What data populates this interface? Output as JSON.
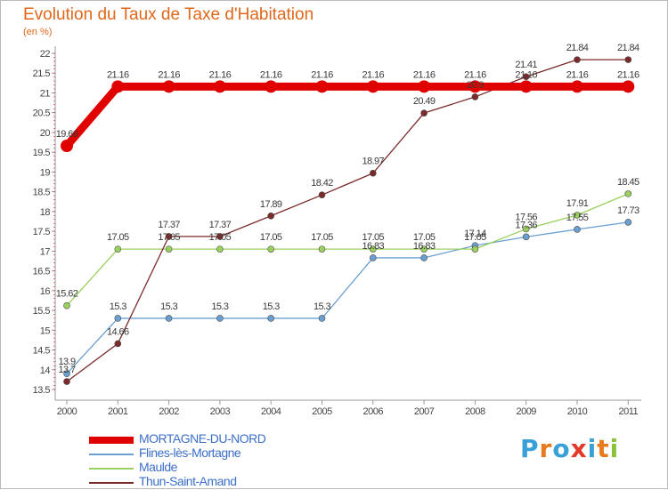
{
  "chart_data": {
    "type": "line",
    "title": "Evolution du Taux de Taxe d'Habitation",
    "unit_label": "(en %)",
    "categories": [
      "2000",
      "2001",
      "2002",
      "2003",
      "2004",
      "2005",
      "2006",
      "2007",
      "2008",
      "2009",
      "2010",
      "2011"
    ],
    "ylim": [
      13.5,
      22
    ],
    "yticks": [
      "13.5",
      "14",
      "14.5",
      "15",
      "15.5",
      "16",
      "16.5",
      "17",
      "17.5",
      "18",
      "18.5",
      "19",
      "19.5",
      "20",
      "20.5",
      "21",
      "21.5",
      "22"
    ],
    "grid": false,
    "legend_position": "bottom-left",
    "series": [
      {
        "name": "MORTAGNE-DU-NORD",
        "color": "#e00000",
        "values": [
          19.66,
          21.16,
          21.16,
          21.16,
          21.16,
          21.16,
          21.16,
          21.16,
          21.16,
          21.16,
          21.16,
          21.16
        ],
        "labels": [
          "19.66",
          "21.16",
          "21.16",
          "21.16",
          "21.16",
          "21.16",
          "21.16",
          "21.16",
          "21.16",
          "21.16",
          "21.16",
          "21.16"
        ]
      },
      {
        "name": "Flines-lès-Mortagne",
        "color": "#6a9fd1",
        "values": [
          13.9,
          15.3,
          15.3,
          15.3,
          15.3,
          15.3,
          16.83,
          16.83,
          17.14,
          17.36,
          17.55,
          17.73
        ],
        "labels": [
          "13.9",
          "15.3",
          "15.3",
          "15.3",
          "15.3",
          "15.3",
          "16.83",
          "16.83",
          "17.14",
          "17.36",
          "17.55",
          "17.73"
        ]
      },
      {
        "name": "Maulde",
        "color": "#9ad05e",
        "values": [
          15.62,
          17.05,
          17.05,
          17.05,
          17.05,
          17.05,
          17.05,
          17.05,
          17.05,
          17.56,
          17.91,
          18.45
        ],
        "labels": [
          "15.62",
          "17.05",
          "17.05",
          "17.05",
          "17.05",
          "17.05",
          "17.05",
          "17.05",
          "17.05",
          "17.56",
          "17.91",
          "18.45"
        ]
      },
      {
        "name": "Thun-Saint-Amand",
        "color": "#7a2a2a",
        "values": [
          13.7,
          14.66,
          17.37,
          17.37,
          17.89,
          18.42,
          18.97,
          20.49,
          20.9,
          21.41,
          21.84,
          21.84
        ],
        "labels": [
          "13.7",
          "14.66",
          "17.37",
          "17.37",
          "17.89",
          "18.42",
          "18.97",
          "20.49",
          "20.9",
          "21.41",
          "21.84",
          "21.84"
        ]
      }
    ]
  },
  "logo": {
    "letters": [
      "P",
      "r",
      "o",
      "x",
      "i",
      "t",
      "i"
    ],
    "colors": [
      "#3aa0d8",
      "#e87a1e",
      "#3aa0d8",
      "#e23a2a",
      "#3aa0d8",
      "#e87a1e",
      "#8ac23c"
    ]
  }
}
